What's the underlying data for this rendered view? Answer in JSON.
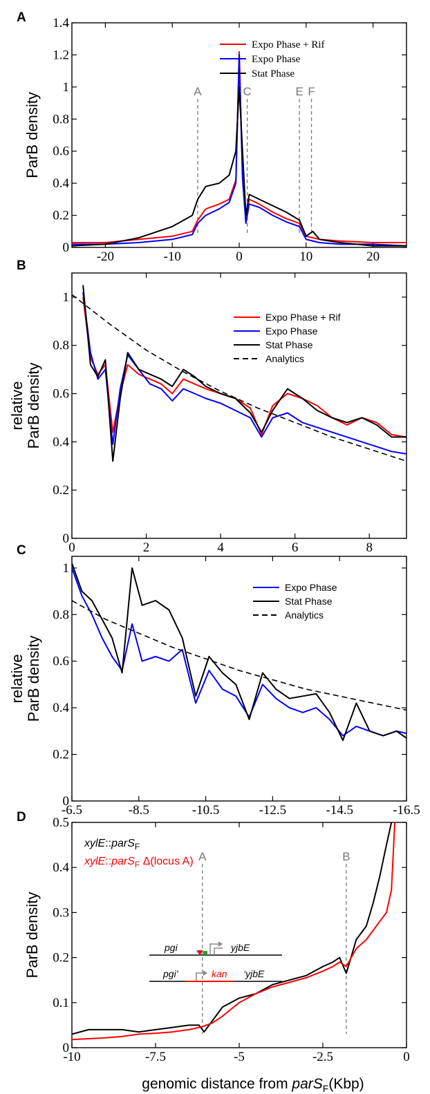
{
  "figure": {
    "xlabel_prefix": "genomic distance from ",
    "xlabel_italic": "parS",
    "xlabel_sub": "F",
    "xlabel_suffix": "(Kbp)"
  },
  "colors": {
    "expo_rif": "#ff0000",
    "expo": "#0000ff",
    "stat": "#000000",
    "analytics": "#000000",
    "marker": "#777777"
  },
  "chart_data": [
    {
      "panel": "A",
      "type": "line",
      "ylabel": "ParB density",
      "xlim": [
        -25,
        25
      ],
      "ylim": [
        0,
        1.4
      ],
      "xticks": [
        -20,
        -10,
        0,
        10,
        20
      ],
      "xtick_labels": [
        "-20",
        "-10",
        "0",
        "10",
        "20"
      ],
      "yticks": [
        0,
        0.2,
        0.4,
        0.6,
        0.8,
        1,
        1.2,
        1.4
      ],
      "ytick_labels": [
        "0",
        "0.2",
        "0.4",
        "0.6",
        "0.8",
        "1",
        "1.2",
        "1.4"
      ],
      "legend": "top-right",
      "markers": [
        {
          "label": "A",
          "x": -6.2
        },
        {
          "label": "C",
          "x": 1.2
        },
        {
          "label": "E",
          "x": 9.0
        },
        {
          "label": "F",
          "x": 10.8
        }
      ],
      "series": [
        {
          "name": "Expo Phase + Rif",
          "color": "#ff0000",
          "x": [
            -25,
            -20,
            -15,
            -10,
            -7,
            -6.2,
            -5,
            -3,
            -1.5,
            -0.5,
            0,
            0.5,
            1.0,
            1.5,
            3,
            5,
            7,
            9,
            10,
            12,
            15,
            20,
            25
          ],
          "y": [
            0.03,
            0.03,
            0.05,
            0.07,
            0.1,
            0.17,
            0.24,
            0.27,
            0.3,
            0.42,
            1.22,
            0.45,
            0.18,
            0.3,
            0.27,
            0.22,
            0.18,
            0.15,
            0.07,
            0.05,
            0.04,
            0.03,
            0.03
          ]
        },
        {
          "name": "Expo Phase",
          "color": "#0000ff",
          "x": [
            -25,
            -20,
            -15,
            -10,
            -7,
            -6.2,
            -5,
            -3,
            -1.5,
            -0.5,
            0,
            0.5,
            1.0,
            1.5,
            3,
            5,
            7,
            9,
            10,
            12,
            15,
            20,
            25
          ],
          "y": [
            0.02,
            0.02,
            0.03,
            0.05,
            0.08,
            0.15,
            0.2,
            0.24,
            0.28,
            0.4,
            1.2,
            0.43,
            0.15,
            0.27,
            0.25,
            0.2,
            0.16,
            0.13,
            0.05,
            0.03,
            0.02,
            0.02,
            0.01
          ]
        },
        {
          "name": "Stat Phase",
          "color": "#000000",
          "x": [
            -25,
            -20,
            -15,
            -10,
            -7,
            -6.2,
            -5,
            -3,
            -1.5,
            -0.5,
            0,
            0.5,
            1.0,
            1.5,
            3,
            5,
            7,
            9,
            10,
            11,
            12,
            15,
            20,
            25
          ],
          "y": [
            0.01,
            0.02,
            0.06,
            0.13,
            0.2,
            0.3,
            0.38,
            0.4,
            0.45,
            0.6,
            1.0,
            0.6,
            0.2,
            0.33,
            0.3,
            0.26,
            0.22,
            0.17,
            0.07,
            0.1,
            0.05,
            0.03,
            0.01,
            0.01
          ]
        }
      ]
    },
    {
      "panel": "B",
      "type": "line",
      "ylabel": "relative",
      "ylabel2": "ParB density",
      "xlim": [
        0,
        9
      ],
      "ylim": [
        0,
        1.1
      ],
      "xticks": [
        0,
        2,
        4,
        6,
        8
      ],
      "xtick_labels": [
        "0",
        "2",
        "4",
        "6",
        "8"
      ],
      "yticks": [
        0,
        0.2,
        0.4,
        0.6,
        0.8,
        1
      ],
      "ytick_labels": [
        "0",
        "0.2",
        "0.4",
        "0.6",
        "0.8",
        "1"
      ],
      "legend": "top-right",
      "series": [
        {
          "name": "Expo Phase + Rif",
          "color": "#ff0000",
          "x": [
            0.3,
            0.5,
            0.7,
            0.9,
            1.1,
            1.3,
            1.5,
            1.8,
            2.1,
            2.4,
            2.7,
            3.0,
            3.3,
            3.6,
            4.0,
            4.4,
            4.8,
            5.1,
            5.4,
            5.8,
            6.2,
            6.6,
            7.0,
            7.4,
            7.8,
            8.2,
            8.6,
            9.0
          ],
          "y": [
            1.0,
            0.75,
            0.68,
            0.72,
            0.44,
            0.6,
            0.72,
            0.68,
            0.66,
            0.64,
            0.6,
            0.66,
            0.64,
            0.62,
            0.6,
            0.58,
            0.54,
            0.43,
            0.55,
            0.6,
            0.58,
            0.55,
            0.5,
            0.47,
            0.5,
            0.48,
            0.43,
            0.42
          ]
        },
        {
          "name": "Expo Phase",
          "color": "#0000ff",
          "x": [
            0.3,
            0.5,
            0.7,
            0.9,
            1.1,
            1.3,
            1.5,
            1.8,
            2.1,
            2.4,
            2.7,
            3.0,
            3.3,
            3.6,
            4.0,
            4.4,
            4.8,
            5.1,
            5.4,
            5.8,
            6.2,
            6.6,
            7.0,
            7.4,
            7.8,
            8.2,
            8.6,
            9.0
          ],
          "y": [
            1.02,
            0.77,
            0.66,
            0.7,
            0.39,
            0.62,
            0.76,
            0.7,
            0.64,
            0.62,
            0.57,
            0.62,
            0.6,
            0.58,
            0.56,
            0.53,
            0.5,
            0.42,
            0.5,
            0.52,
            0.48,
            0.46,
            0.44,
            0.42,
            0.4,
            0.38,
            0.36,
            0.35
          ]
        },
        {
          "name": "Stat Phase",
          "color": "#000000",
          "x": [
            0.3,
            0.5,
            0.7,
            0.9,
            1.1,
            1.3,
            1.5,
            1.8,
            2.1,
            2.4,
            2.7,
            3.0,
            3.3,
            3.6,
            4.0,
            4.4,
            4.8,
            5.1,
            5.4,
            5.8,
            6.2,
            6.6,
            7.0,
            7.4,
            7.8,
            8.2,
            8.6,
            9.0
          ],
          "y": [
            1.05,
            0.72,
            0.67,
            0.74,
            0.32,
            0.58,
            0.77,
            0.7,
            0.68,
            0.66,
            0.63,
            0.7,
            0.67,
            0.63,
            0.6,
            0.58,
            0.52,
            0.44,
            0.53,
            0.62,
            0.58,
            0.53,
            0.5,
            0.48,
            0.5,
            0.47,
            0.42,
            0.42
          ]
        },
        {
          "name": "Analytics",
          "color": "#000000",
          "dashed": true,
          "x": [
            0,
            1,
            2,
            3,
            4,
            5,
            6,
            7,
            8,
            9
          ],
          "y": [
            1.01,
            0.89,
            0.78,
            0.69,
            0.61,
            0.54,
            0.48,
            0.42,
            0.37,
            0.32
          ]
        }
      ]
    },
    {
      "panel": "C",
      "type": "line",
      "ylabel": "relative",
      "ylabel2": "ParB density",
      "xlim": [
        -6.5,
        -16.5
      ],
      "ylim": [
        0,
        1.05
      ],
      "xticks": [
        -6.5,
        -8.5,
        -10.5,
        -12.5,
        -14.5,
        -16.5
      ],
      "xtick_labels": [
        "-6.5",
        "-8.5",
        "-10.5",
        "-12.5",
        "-14.5",
        "-16.5"
      ],
      "yticks": [
        0,
        0.2,
        0.4,
        0.6,
        0.8,
        1
      ],
      "ytick_labels": [
        "0",
        "0.2",
        "0.4",
        "0.6",
        "0.8",
        "1"
      ],
      "legend": "top-right",
      "series": [
        {
          "name": "Expo Phase",
          "color": "#0000ff",
          "x": [
            -6.5,
            -6.8,
            -7.1,
            -7.4,
            -7.7,
            -8.0,
            -8.3,
            -8.6,
            -9.0,
            -9.4,
            -9.8,
            -10.2,
            -10.6,
            -11.0,
            -11.4,
            -11.8,
            -12.2,
            -12.6,
            -13.0,
            -13.4,
            -13.8,
            -14.2,
            -14.6,
            -15.0,
            -15.4,
            -15.8,
            -16.2,
            -16.5
          ],
          "y": [
            1.0,
            0.88,
            0.8,
            0.7,
            0.62,
            0.56,
            0.76,
            0.6,
            0.62,
            0.6,
            0.65,
            0.42,
            0.56,
            0.48,
            0.45,
            0.36,
            0.5,
            0.44,
            0.4,
            0.38,
            0.4,
            0.35,
            0.28,
            0.32,
            0.3,
            0.28,
            0.3,
            0.29
          ]
        },
        {
          "name": "Stat Phase",
          "color": "#000000",
          "x": [
            -6.5,
            -6.8,
            -7.1,
            -7.4,
            -7.7,
            -8.0,
            -8.3,
            -8.6,
            -9.0,
            -9.4,
            -9.8,
            -10.2,
            -10.6,
            -11.0,
            -11.4,
            -11.8,
            -12.2,
            -12.6,
            -13.0,
            -13.4,
            -13.8,
            -14.2,
            -14.6,
            -15.0,
            -15.4,
            -15.8,
            -16.2,
            -16.5
          ],
          "y": [
            1.02,
            0.9,
            0.86,
            0.78,
            0.7,
            0.55,
            1.0,
            0.84,
            0.86,
            0.82,
            0.7,
            0.45,
            0.62,
            0.55,
            0.5,
            0.35,
            0.55,
            0.48,
            0.44,
            0.45,
            0.46,
            0.38,
            0.26,
            0.42,
            0.3,
            0.28,
            0.3,
            0.27
          ]
        },
        {
          "name": "Analytics",
          "color": "#000000",
          "dashed": true,
          "x": [
            -6.5,
            -7.5,
            -8.5,
            -9.5,
            -10.5,
            -11.5,
            -12.5,
            -13.5,
            -14.5,
            -15.5,
            -16.5
          ],
          "y": [
            0.86,
            0.78,
            0.72,
            0.66,
            0.61,
            0.56,
            0.52,
            0.48,
            0.45,
            0.42,
            0.39
          ]
        }
      ]
    },
    {
      "panel": "D",
      "type": "line",
      "ylabel": "ParB density",
      "xlim": [
        -10,
        0
      ],
      "ylim": [
        0,
        0.5
      ],
      "xticks": [
        -10,
        -7.5,
        -5,
        -2.5,
        0
      ],
      "xtick_labels": [
        "-10",
        "-7.5",
        "-5",
        "-2.5",
        "0"
      ],
      "yticks": [
        0,
        0.1,
        0.2,
        0.3,
        0.4,
        0.5
      ],
      "ytick_labels": [
        "0",
        "0.1",
        "0.2",
        "0.3",
        "0.4",
        "0.5"
      ],
      "legend": "top-left",
      "markers": [
        {
          "label": "A",
          "x": -6.1
        },
        {
          "label": "B",
          "x": -1.8
        }
      ],
      "inset": {
        "top_left": "pgi",
        "top_right": "yjbE",
        "bottom_left": "pgi’",
        "bottom_mid": "kan",
        "bottom_right": "‘yjbE"
      },
      "series": [
        {
          "name_prefix": "xylE",
          "name_mid": "::",
          "name_italic": "parS",
          "name_sub": "F",
          "name_suffix": "",
          "color": "#000000",
          "x": [
            -10,
            -9.5,
            -9,
            -8.5,
            -8,
            -7.5,
            -7,
            -6.5,
            -6.2,
            -6.05,
            -5.8,
            -5.5,
            -5,
            -4.5,
            -4,
            -3.5,
            -3,
            -2.5,
            -2.2,
            -2.0,
            -1.8,
            -1.5,
            -1.2,
            -1.0,
            -0.8,
            -0.6,
            -0.45
          ],
          "y": [
            0.03,
            0.04,
            0.04,
            0.04,
            0.035,
            0.04,
            0.045,
            0.05,
            0.05,
            0.035,
            0.06,
            0.09,
            0.11,
            0.12,
            0.14,
            0.15,
            0.16,
            0.18,
            0.19,
            0.2,
            0.165,
            0.24,
            0.27,
            0.32,
            0.38,
            0.45,
            0.5
          ]
        },
        {
          "name_prefix": "xylE",
          "name_mid": "::",
          "name_italic": "parS",
          "name_sub": "F",
          "name_suffix": " Δ(locus A)",
          "color": "#ff0000",
          "x": [
            -10,
            -9.5,
            -9,
            -8.5,
            -8,
            -7.5,
            -7,
            -6.5,
            -6.2,
            -6.05,
            -5.8,
            -5.5,
            -5,
            -4.5,
            -4,
            -3.5,
            -3,
            -2.5,
            -2.2,
            -2.0,
            -1.8,
            -1.5,
            -1.2,
            -1.0,
            -0.8,
            -0.6,
            -0.45,
            -0.35
          ],
          "y": [
            0.018,
            0.02,
            0.022,
            0.025,
            0.03,
            0.032,
            0.035,
            0.04,
            0.045,
            0.048,
            0.055,
            0.07,
            0.1,
            0.12,
            0.135,
            0.145,
            0.155,
            0.17,
            0.18,
            0.19,
            0.18,
            0.22,
            0.24,
            0.26,
            0.28,
            0.3,
            0.35,
            0.5
          ]
        }
      ]
    }
  ]
}
